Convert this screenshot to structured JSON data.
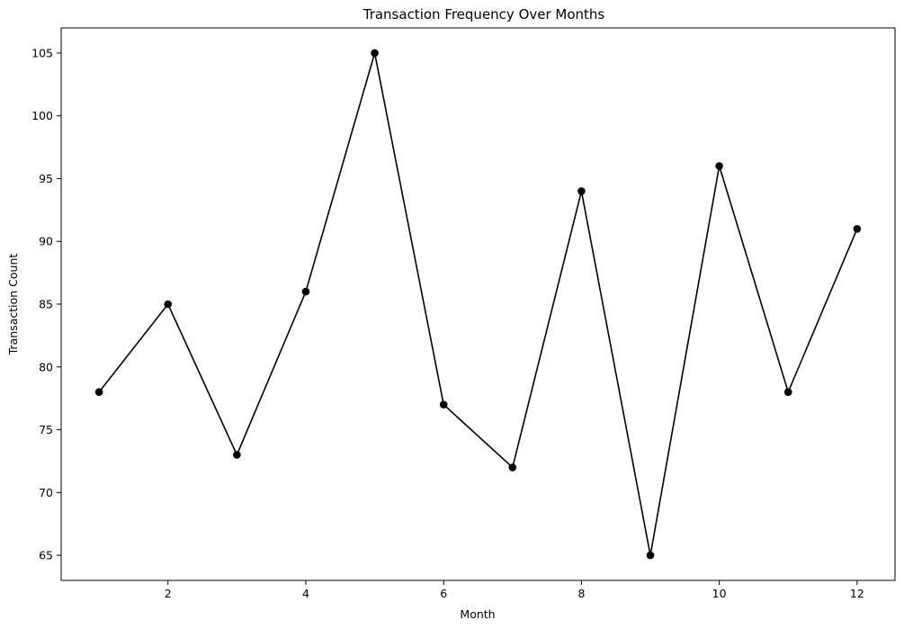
{
  "chart_data": {
    "type": "line",
    "title": "Transaction Frequency Over Months",
    "xlabel": "Month",
    "ylabel": "Transaction Count",
    "x": [
      1,
      2,
      3,
      4,
      5,
      6,
      7,
      8,
      9,
      10,
      11,
      12
    ],
    "series": [
      {
        "values": [
          78,
          85,
          73,
          86,
          105,
          77,
          72,
          94,
          65,
          96,
          78,
          91
        ],
        "color": "#000000",
        "marker": "circle"
      }
    ],
    "xlim": [
      0.45,
      12.55
    ],
    "ylim": [
      63,
      107
    ],
    "xticks": [
      2,
      4,
      6,
      8,
      10,
      12
    ],
    "xtick_labels": [
      "2",
      "4",
      "6",
      "8",
      "10",
      "12"
    ],
    "yticks": [
      65,
      70,
      75,
      80,
      85,
      90,
      95,
      100,
      105
    ],
    "ytick_labels": [
      "65",
      "70",
      "75",
      "80",
      "85",
      "90",
      "95",
      "100",
      "105"
    ],
    "grid": false,
    "legend": "none"
  }
}
